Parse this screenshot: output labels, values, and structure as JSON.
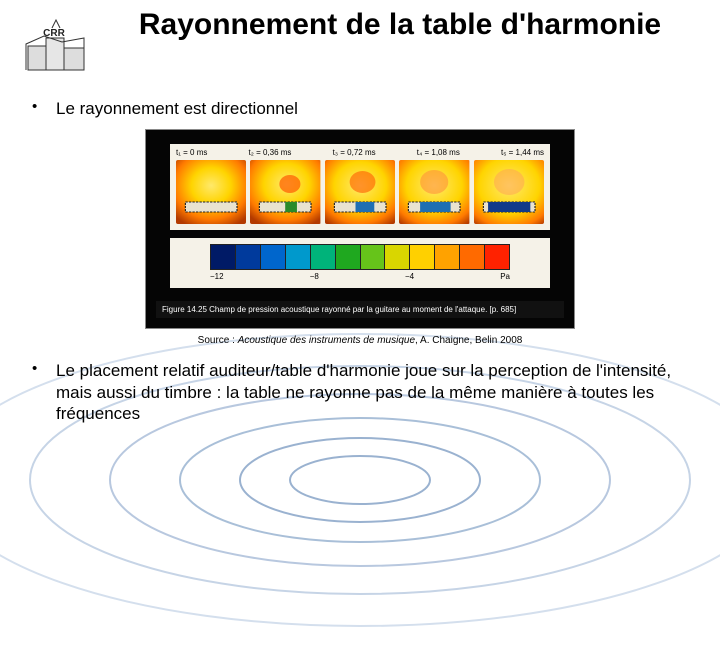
{
  "title": "Rayonnement de la table d'harmonie",
  "bullets": {
    "b1": "Le rayonnement est directionnel",
    "b2": "Le placement relatif auditeur/table d'harmonie joue sur la perception de l'intensité, mais aussi du timbre : la table ne rayonne pas de la même manière à toutes les fréquences"
  },
  "figure": {
    "time_labels": [
      "t₁ = 0 ms",
      "t₂ = 0,36 ms",
      "t₃ = 0,72 ms",
      "t₄ = 1,08 ms",
      "t₅ = 1,44 ms"
    ],
    "guitar_bar_fill": "#e9e3d0",
    "guitar_bar_stroke": "#222222",
    "heatmap_bg_stops": [
      "#b33a00",
      "#ff7a00",
      "#ffd400",
      "#ffe96b"
    ],
    "localized_spot": {
      "cx_ratio": 0.55,
      "cy_ratio": 0.35,
      "r_ratio": 0.18,
      "color": "#ff5a00"
    },
    "colorbar": {
      "colors": [
        "#001a66",
        "#003a9c",
        "#0066cc",
        "#0099cc",
        "#00b37a",
        "#1fa81f",
        "#66c41a",
        "#d9d600",
        "#ffd000",
        "#ffa200",
        "#ff6a00",
        "#ff2200"
      ],
      "ticks": [
        "−12",
        "−8",
        "−4",
        "Pa"
      ]
    },
    "caption": "Figure 14.25 Champ de pression acoustique rayonné par la guitare au moment de l'attaque. [p. 685]"
  },
  "source": {
    "prefix": "Source : ",
    "italic": "Acoustique des instruments de musique",
    "suffix": ", A. Chaigne, Belin 2008"
  },
  "ripple": {
    "stroke_outer": "#8fa6c9",
    "stroke_inner": "#b8c8df",
    "fill_center": "#d8e4f2"
  },
  "logo_label": "CRR"
}
